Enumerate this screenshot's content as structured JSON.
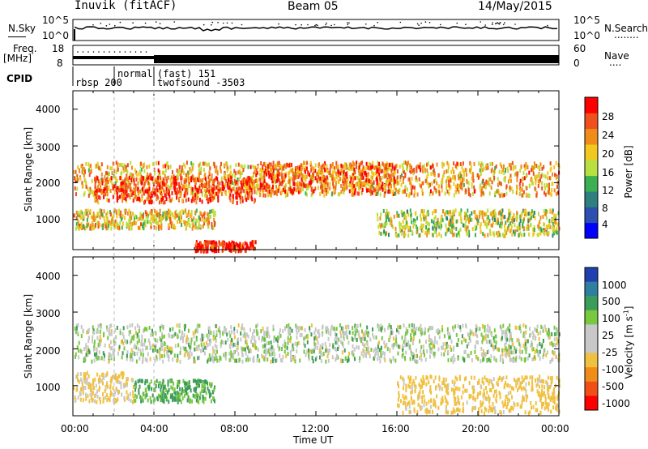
{
  "header": {
    "station": "Inuvik (fitACF)",
    "beam": "Beam 05",
    "date": "14/May/2015"
  },
  "nsky_panel": {
    "left_label": "N.Sky",
    "left_ticks": [
      "10^5",
      "10^0"
    ],
    "right_ticks": [
      "10^5",
      "10^0"
    ],
    "right_label": "N.Search",
    "right_legend_marks": "........"
  },
  "freq_panel": {
    "left_label": "Freq.",
    "left_unit": "[MHz]",
    "left_ticks": [
      "18",
      "8"
    ],
    "right_ticks": [
      "60",
      "0"
    ],
    "right_label": "Nave",
    "right_legend_marks": "...."
  },
  "cpid": {
    "label": "CPID",
    "segments": [
      "rbsp 200",
      "normal",
      "(fast) 151",
      "twofsound -3503"
    ]
  },
  "power_panel": {
    "ylabel": "Slant Range [km]",
    "yticks": [
      "4000",
      "3000",
      "2000",
      "1000"
    ],
    "colorbar_label": "Power [dB]",
    "colorbar_ticks": [
      "28",
      "24",
      "20",
      "16",
      "12",
      "8",
      "4"
    ],
    "colors": [
      "#0000ff",
      "#2d4fb0",
      "#2f7f7f",
      "#3cb050",
      "#b8e040",
      "#f0c820",
      "#f08c18",
      "#f0501e",
      "#ff0000"
    ]
  },
  "velocity_panel": {
    "ylabel": "Slant Range [km]",
    "yticks": [
      "4000",
      "3000",
      "2000",
      "1000"
    ],
    "colorbar_label": "Velocity [m s",
    "colorbar_label_sup": "-1",
    "colorbar_label_end": "]",
    "colorbar_ticks": [
      "1000",
      "500",
      "100",
      "25",
      "-25",
      "-100",
      "-500",
      "-1000"
    ],
    "colors": [
      "#2040b0",
      "#2f7fa0",
      "#3c9c5a",
      "#78c840",
      "#c8c8c8",
      "#c8c8c8",
      "#f0c040",
      "#f08c18",
      "#f05018",
      "#ff0000"
    ]
  },
  "xaxis": {
    "label": "Time UT",
    "ticks": [
      "00:00",
      "04:00",
      "08:00",
      "12:00",
      "16:00",
      "20:00",
      "00:00"
    ]
  },
  "chart_data": {
    "type": "heatmap",
    "title": "Inuvik (fitACF)  Beam 05  14/May/2015",
    "xlabel": "Time UT",
    "ylabel": "Slant Range [km]",
    "x_ticks": [
      "00:00",
      "04:00",
      "08:00",
      "12:00",
      "16:00",
      "20:00",
      "00:00"
    ],
    "x_range_hours": [
      0,
      24
    ],
    "y_range_km": [
      180,
      4500
    ],
    "panels": [
      {
        "name": "Power",
        "unit": "dB",
        "colorbar": [
          4,
          8,
          12,
          16,
          20,
          24,
          28
        ],
        "scatter_bands": [
          {
            "t": [
              0,
              24
            ],
            "range_km": [
              1700,
              2600
            ],
            "power_db": 20
          },
          {
            "t": [
              1,
              9
            ],
            "range_km": [
              1500,
              2200
            ],
            "power_db": 26
          },
          {
            "t": [
              9,
              16
            ],
            "range_km": [
              1800,
              2600
            ],
            "power_db": 24
          },
          {
            "t": [
              0,
              7
            ],
            "range_km": [
              800,
              1300
            ],
            "power_db": 18
          },
          {
            "t": [
              15,
              24
            ],
            "range_km": [
              600,
              1300
            ],
            "power_db": 16
          },
          {
            "t": [
              6,
              9
            ],
            "range_km": [
              180,
              450
            ],
            "power_db": 28
          }
        ]
      },
      {
        "name": "Velocity",
        "unit": "m s^-1",
        "colorbar": [
          -1000,
          -500,
          -100,
          -25,
          25,
          100,
          500,
          1000
        ],
        "scatter_bands": [
          {
            "t": [
              0,
              24
            ],
            "range_km": [
              1700,
              2700
            ],
            "velocity": 0
          },
          {
            "t": [
              0,
              3
            ],
            "range_km": [
              600,
              1400
            ],
            "velocity": -150
          },
          {
            "t": [
              3,
              7
            ],
            "range_km": [
              600,
              1200
            ],
            "velocity": 150
          },
          {
            "t": [
              16,
              24
            ],
            "range_km": [
              300,
              1300
            ],
            "velocity": -200
          }
        ]
      }
    ],
    "n_sky": {
      "range": [
        "10^0",
        "10^5"
      ]
    },
    "frequency_mhz": {
      "range": [
        8,
        18
      ],
      "value": 11
    },
    "nave": {
      "range": [
        0,
        60
      ]
    },
    "cpid_segments": [
      "rbsp 200",
      "normal",
      "(fast) 151",
      "twofsound -3503"
    ]
  }
}
